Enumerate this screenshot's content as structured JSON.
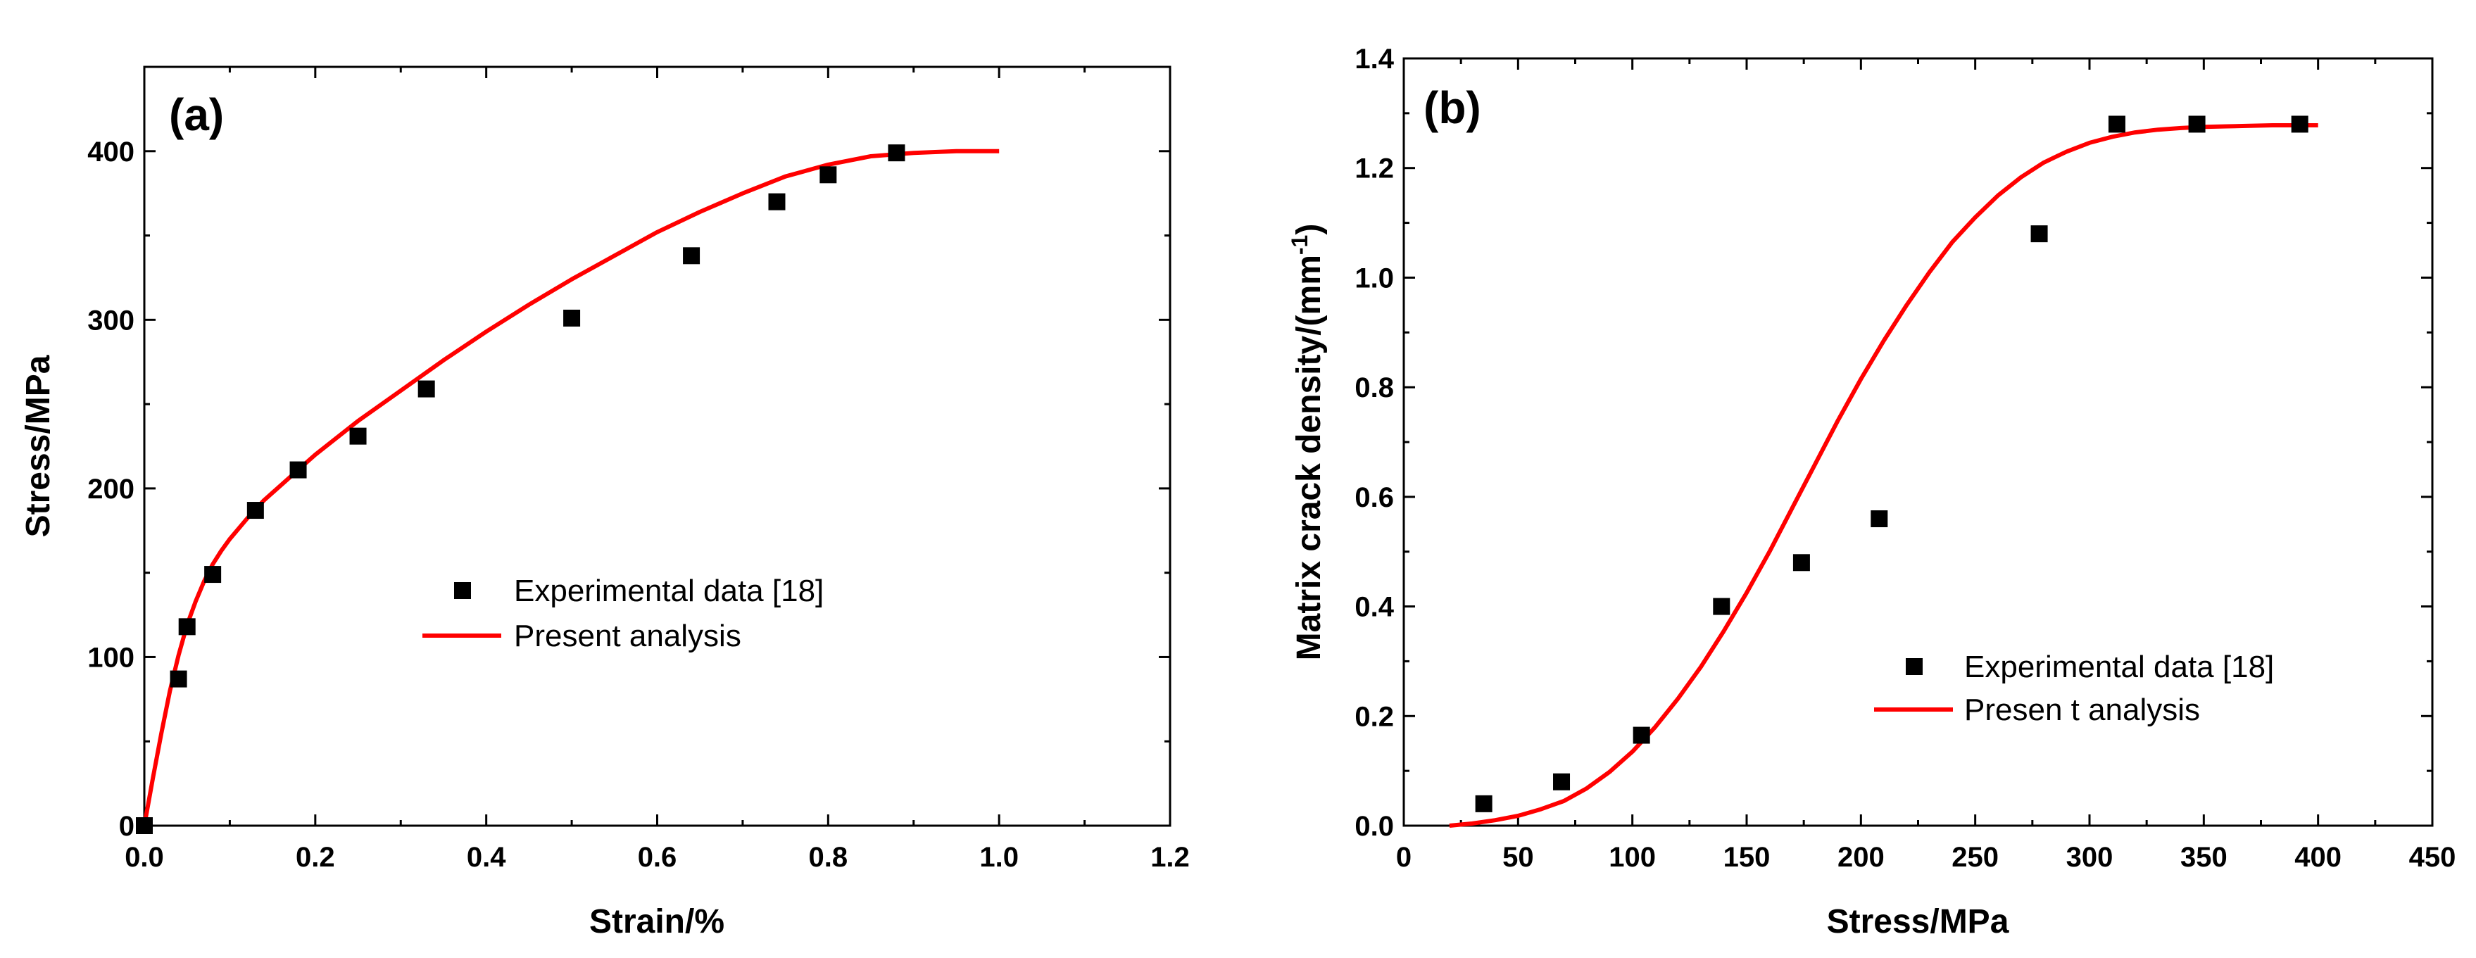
{
  "chart_data": [
    {
      "type": "scatter",
      "panel_label": "(a)",
      "title": "",
      "xlabel": "Strain/%",
      "ylabel": "Stress/MPa",
      "xlim": [
        0,
        1.2
      ],
      "ylim": [
        0,
        450
      ],
      "xticks": [
        0.0,
        0.2,
        0.4,
        0.6,
        0.8,
        1.0,
        1.2
      ],
      "xtick_labels": [
        "0.0",
        "0.2",
        "0.4",
        "0.6",
        "0.8",
        "1.0",
        "1.2"
      ],
      "yticks": [
        0,
        100,
        200,
        300,
        400
      ],
      "ytick_labels": [
        "0",
        "100",
        "200",
        "300",
        "400"
      ],
      "legend_position": "center-right",
      "series": [
        {
          "name": "Experimental data [18]",
          "kind": "markers",
          "marker": "square",
          "color": "#000000",
          "x": [
            0.0,
            0.04,
            0.05,
            0.08,
            0.13,
            0.18,
            0.25,
            0.33,
            0.5,
            0.64,
            0.74,
            0.8,
            0.88
          ],
          "y": [
            0,
            87,
            118,
            149,
            187,
            211,
            231,
            259,
            301,
            338,
            370,
            386,
            399
          ]
        },
        {
          "name": "Present analysis",
          "kind": "line",
          "color": "#ff0000",
          "x": [
            0.0,
            0.01,
            0.02,
            0.03,
            0.04,
            0.05,
            0.06,
            0.07,
            0.08,
            0.09,
            0.1,
            0.12,
            0.14,
            0.16,
            0.18,
            0.2,
            0.25,
            0.3,
            0.35,
            0.4,
            0.45,
            0.5,
            0.55,
            0.6,
            0.65,
            0.7,
            0.75,
            0.8,
            0.85,
            0.9,
            0.95,
            1.0
          ],
          "y": [
            0,
            28,
            55,
            80,
            101,
            119,
            133,
            145,
            155,
            163,
            170,
            182,
            193,
            202,
            211,
            220,
            240,
            258,
            276,
            293,
            309,
            324,
            338,
            352,
            364,
            375,
            385,
            392,
            397,
            399,
            400,
            400
          ]
        }
      ]
    },
    {
      "type": "scatter",
      "panel_label": "(b)",
      "title": "",
      "xlabel": "Stress/MPa",
      "ylabel": "Matrix crack density/(mm",
      "ylabel_superscript": "-1",
      "ylabel_suffix": ")",
      "xlim": [
        0,
        450
      ],
      "ylim": [
        0,
        1.4
      ],
      "xticks": [
        0,
        50,
        100,
        150,
        200,
        250,
        300,
        350,
        400,
        450
      ],
      "xtick_labels": [
        "0",
        "50",
        "100",
        "150",
        "200",
        "250",
        "300",
        "350",
        "400",
        "450"
      ],
      "yticks": [
        0.0,
        0.2,
        0.4,
        0.6,
        0.8,
        1.0,
        1.2,
        1.4
      ],
      "ytick_labels": [
        "0.0",
        "0.2",
        "0.4",
        "0.6",
        "0.8",
        "1.0",
        "1.2",
        "1.4"
      ],
      "legend_position": "center-right",
      "series": [
        {
          "name": "Experimental data [18]",
          "kind": "markers",
          "marker": "square",
          "color": "#000000",
          "x": [
            35,
            69,
            104,
            139,
            174,
            208,
            278,
            312,
            347,
            392
          ],
          "y": [
            0.04,
            0.08,
            0.165,
            0.4,
            0.48,
            0.56,
            1.08,
            1.28,
            1.28,
            1.28
          ]
        },
        {
          "name": "Presen t analysis",
          "kind": "line",
          "color": "#ff0000",
          "x": [
            20,
            30,
            40,
            50,
            60,
            70,
            80,
            90,
            100,
            110,
            120,
            130,
            140,
            150,
            160,
            170,
            180,
            190,
            200,
            210,
            220,
            230,
            240,
            250,
            260,
            270,
            280,
            290,
            300,
            310,
            320,
            330,
            340,
            350,
            360,
            370,
            380,
            390,
            400
          ],
          "y": [
            0.0,
            0.004,
            0.01,
            0.018,
            0.03,
            0.045,
            0.068,
            0.098,
            0.135,
            0.18,
            0.232,
            0.29,
            0.355,
            0.425,
            0.5,
            0.58,
            0.66,
            0.74,
            0.815,
            0.885,
            0.95,
            1.01,
            1.065,
            1.11,
            1.15,
            1.183,
            1.21,
            1.23,
            1.246,
            1.257,
            1.265,
            1.27,
            1.273,
            1.275,
            1.276,
            1.277,
            1.278,
            1.278,
            1.278
          ]
        }
      ]
    }
  ]
}
